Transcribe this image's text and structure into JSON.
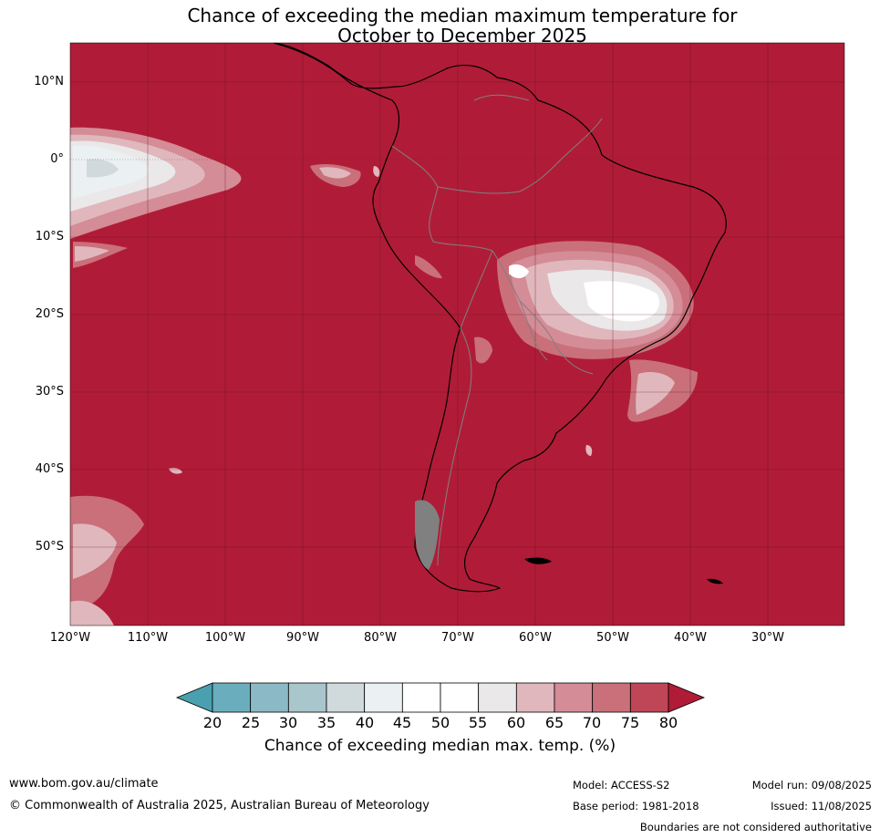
{
  "title": {
    "line1": "Chance of exceeding the median maximum temperature for",
    "line2": "October to December 2025"
  },
  "map": {
    "background_color": "#b01c37",
    "lat_labels": [
      "10°N",
      "0°",
      "10°S",
      "20°S",
      "30°S",
      "40°S",
      "50°S"
    ],
    "lon_labels": [
      "120°W",
      "110°W",
      "100°W",
      "90°W",
      "80°W",
      "70°W",
      "60°W",
      "50°W",
      "40°W",
      "30°W"
    ]
  },
  "colorbar": {
    "ticks": [
      "20",
      "25",
      "30",
      "35",
      "40",
      "45",
      "50",
      "55",
      "60",
      "65",
      "70",
      "75",
      "80"
    ],
    "colors": [
      "#4aa0af",
      "#6aaebd",
      "#8bbac6",
      "#a9c6cc",
      "#d0dadc",
      "#ebf0f2",
      "#ffffff",
      "#ffffff",
      "#eae8e9",
      "#e0b7bd",
      "#d48c96",
      "#c9707b",
      "#be4656",
      "#b01c37"
    ],
    "label": "Chance of exceeding median max. temp. (%)"
  },
  "footer": {
    "url": "www.bom.gov.au/climate",
    "copyright": "© Commonwealth of Australia 2025, Australian Bureau of Meteorology",
    "model": "Model: ACCESS-S2",
    "base_period": "Base period: 1981-2018",
    "model_run": "Model run: 09/08/2025",
    "issued": "Issued: 11/08/2025",
    "disclaimer": "Boundaries are not considered authoritative"
  }
}
